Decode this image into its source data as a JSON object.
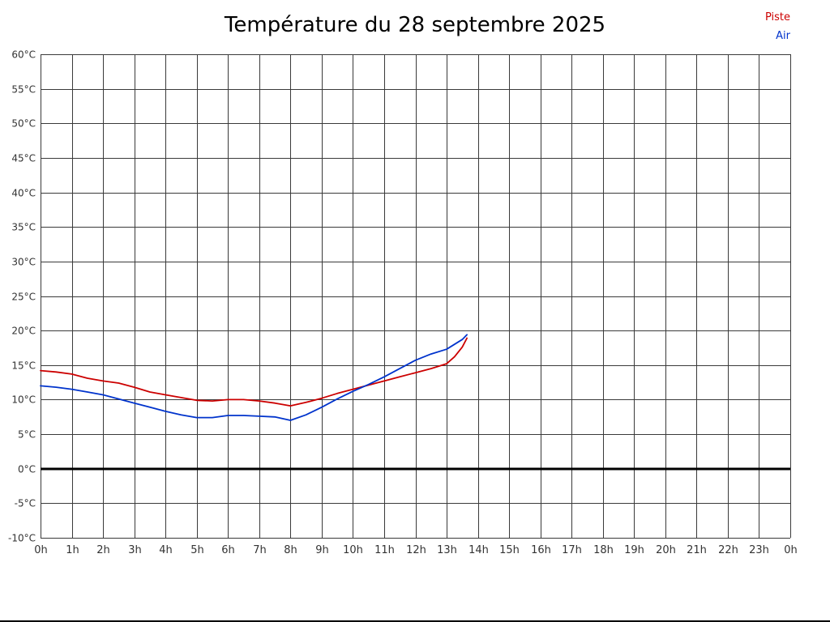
{
  "title": "Température du 28 septembre 2025",
  "legend": [
    {
      "label": "Piste",
      "color": "#cc0000"
    },
    {
      "label": "Air",
      "color": "#0033cc"
    }
  ],
  "chart_data": {
    "type": "line",
    "title": "Température du 28 septembre 2025",
    "xlabel": "",
    "ylabel": "",
    "xlim": [
      0,
      24
    ],
    "ylim": [
      -10,
      60
    ],
    "y_tick_step": 5,
    "y_tick_suffix": "°C",
    "grid": true,
    "zero_line": true,
    "legend_position": "top-right",
    "x_ticks": [
      "0h",
      "1h",
      "2h",
      "3h",
      "4h",
      "5h",
      "6h",
      "7h",
      "8h",
      "9h",
      "10h",
      "11h",
      "12h",
      "13h",
      "14h",
      "15h",
      "16h",
      "17h",
      "18h",
      "19h",
      "20h",
      "21h",
      "22h",
      "23h",
      "0h"
    ],
    "series": [
      {
        "name": "Piste",
        "color": "#cc0000",
        "points": [
          [
            0,
            14.2
          ],
          [
            0.5,
            14.0
          ],
          [
            1,
            13.7
          ],
          [
            1.5,
            13.1
          ],
          [
            2,
            12.7
          ],
          [
            2.5,
            12.4
          ],
          [
            3,
            11.8
          ],
          [
            3.5,
            11.1
          ],
          [
            4,
            10.7
          ],
          [
            4.5,
            10.3
          ],
          [
            5,
            9.9
          ],
          [
            5.5,
            9.8
          ],
          [
            6,
            10.0
          ],
          [
            6.5,
            10.0
          ],
          [
            7,
            9.8
          ],
          [
            7.5,
            9.5
          ],
          [
            8,
            9.1
          ],
          [
            8.5,
            9.6
          ],
          [
            9,
            10.2
          ],
          [
            9.5,
            10.9
          ],
          [
            10,
            11.5
          ],
          [
            10.5,
            12.1
          ],
          [
            11,
            12.7
          ],
          [
            11.5,
            13.3
          ],
          [
            12,
            13.9
          ],
          [
            12.5,
            14.5
          ],
          [
            13,
            15.2
          ],
          [
            13.25,
            16.2
          ],
          [
            13.5,
            17.6
          ],
          [
            13.65,
            18.9
          ]
        ]
      },
      {
        "name": "Air",
        "color": "#0033cc",
        "points": [
          [
            0,
            12.0
          ],
          [
            0.5,
            11.8
          ],
          [
            1,
            11.5
          ],
          [
            1.5,
            11.1
          ],
          [
            2,
            10.7
          ],
          [
            2.5,
            10.1
          ],
          [
            3,
            9.5
          ],
          [
            3.5,
            8.9
          ],
          [
            4,
            8.3
          ],
          [
            4.5,
            7.8
          ],
          [
            5,
            7.4
          ],
          [
            5.5,
            7.4
          ],
          [
            6,
            7.7
          ],
          [
            6.5,
            7.7
          ],
          [
            7,
            7.6
          ],
          [
            7.5,
            7.5
          ],
          [
            8,
            7.0
          ],
          [
            8.5,
            7.8
          ],
          [
            9,
            8.9
          ],
          [
            9.5,
            10.1
          ],
          [
            10,
            11.2
          ],
          [
            10.5,
            12.2
          ],
          [
            11,
            13.3
          ],
          [
            11.5,
            14.5
          ],
          [
            12,
            15.7
          ],
          [
            12.5,
            16.6
          ],
          [
            13,
            17.3
          ],
          [
            13.5,
            18.7
          ],
          [
            13.65,
            19.4
          ]
        ]
      }
    ]
  }
}
